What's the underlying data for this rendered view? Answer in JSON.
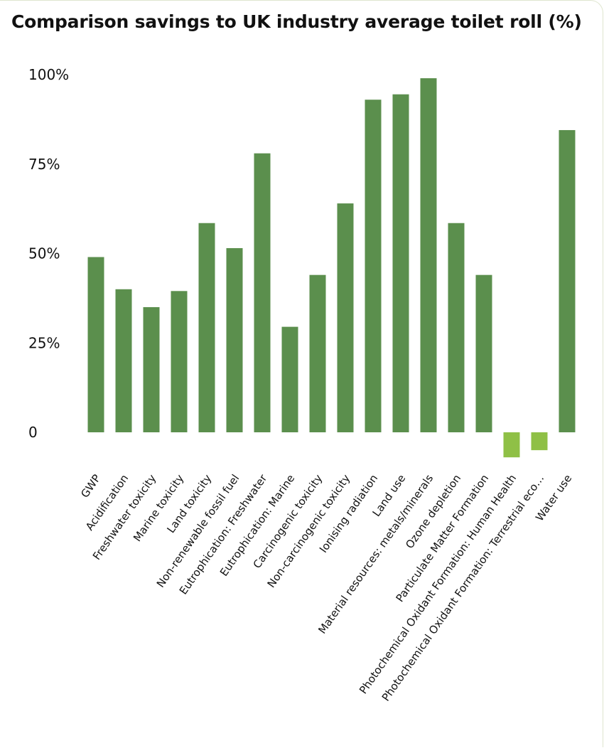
{
  "chart_data": {
    "type": "bar",
    "title": "Comparison savings to UK industry average toilet roll (%)",
    "xlabel": "",
    "ylabel": "",
    "ylim": [
      0,
      100
    ],
    "yticks": [
      {
        "value": 0,
        "label": "0"
      },
      {
        "value": 25,
        "label": "25%"
      },
      {
        "value": 50,
        "label": "50%"
      },
      {
        "value": 75,
        "label": "75%"
      },
      {
        "value": 100,
        "label": "100%"
      }
    ],
    "grid": false,
    "categories": [
      "GWP",
      "Acidification",
      "Freshwater toxicity",
      "Marine toxicity",
      "Land toxicity",
      "Non-renewable fossil fuel",
      "Eutrophication: Freshwater",
      "Eutrophication: Marine",
      "Carcinogenic toxicity",
      "Non-carcinogenic toxicity",
      "Ionising radiation",
      "Land use",
      "Material resources: metals/minerals",
      "Ozone depletion",
      "Particulate Matter Formation",
      "Photochemical Oxidant Formation: Human Health",
      "Photochemical Oxidant Formation: Terrestrial eco…",
      "Water use"
    ],
    "values": [
      49,
      40,
      35,
      39.5,
      58.5,
      51.5,
      78,
      29.5,
      44,
      64,
      93,
      94.5,
      99,
      58.5,
      44,
      -7,
      -5,
      84.5
    ],
    "colors": {
      "positive": "#5b8f4d",
      "negative": "#8fc046",
      "text": "#111111"
    }
  }
}
